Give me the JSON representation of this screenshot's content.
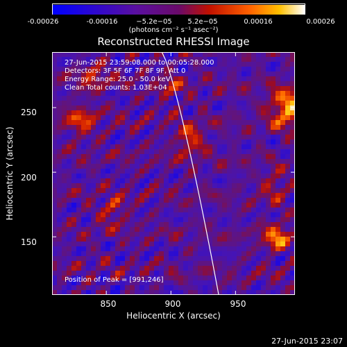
{
  "chart_data": {
    "type": "heatmap",
    "title": "Reconstructed RHESSI Image",
    "xlabel": "Heliocentric X (arcsec)",
    "ylabel": "Heliocentric Y (arcsec)",
    "x_ticks": [
      850,
      900,
      950
    ],
    "y_ticks": [
      150,
      200,
      250
    ],
    "xlim": [
      808,
      996
    ],
    "ylim": [
      105,
      293
    ],
    "colorbar": {
      "ticks": [
        "-0.00026",
        "-0.00016",
        "−5.2e−05",
        "5.2e−05",
        "0.00016",
        "0.00026"
      ],
      "range": [
        -0.00026,
        0.00026
      ],
      "unit": "(photons cm⁻² s⁻¹ asec⁻²)"
    },
    "annotations": {
      "time": "27-Jun-2015 23:59:08.000 to 00:05:28.000",
      "detectors": "Detectors: 3F 5F 6F 7F 8F 9F, Att 0",
      "energy": "Energy Range: 25.0 - 50.0 keV",
      "method": "Clean     Total counts: 1.03E+04",
      "peak": "Position of Peak = [991,246]"
    },
    "limb": {
      "x_top": 893,
      "x_bottom": 937
    },
    "peak": [
      991,
      246
    ],
    "colors": {
      "background": "#000000",
      "limb": "#ffffff"
    }
  },
  "footer": {
    "stamp": "27-Jun-2015 23:07"
  }
}
